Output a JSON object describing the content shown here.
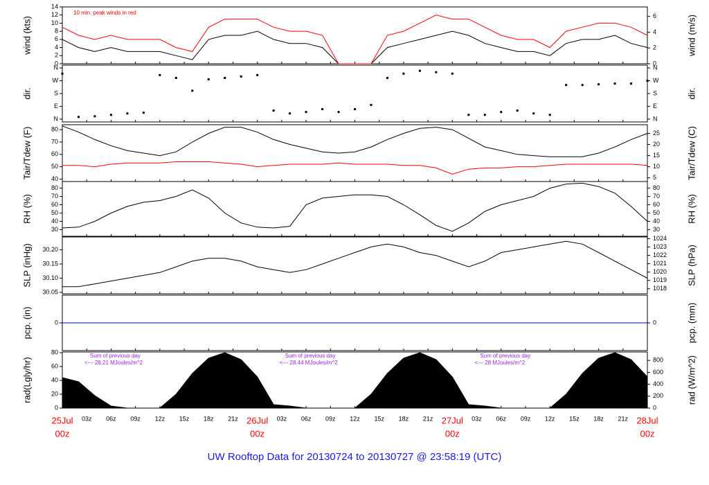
{
  "x_axis": {
    "xlim": [
      0,
      72
    ],
    "x": [
      0,
      2,
      4,
      6,
      8,
      10,
      12,
      14,
      16,
      18,
      20,
      22,
      24,
      26,
      28,
      30,
      32,
      34,
      36,
      38,
      40,
      42,
      44,
      46,
      48,
      50,
      52,
      54,
      56,
      58,
      60,
      62,
      64,
      66,
      68,
      70,
      72
    ],
    "xticks": [
      {
        "value": 0,
        "label": "00z"
      },
      {
        "value": 3,
        "label": "03z"
      },
      {
        "value": 6,
        "label": "06z"
      },
      {
        "value": 9,
        "label": "09z"
      },
      {
        "value": 12,
        "label": "12z"
      },
      {
        "value": 15,
        "label": "15z"
      },
      {
        "value": 18,
        "label": "18z"
      },
      {
        "value": 21,
        "label": "21z"
      },
      {
        "value": 24,
        "label": "00z"
      },
      {
        "value": 27,
        "label": "03z"
      },
      {
        "value": 30,
        "label": "06z"
      },
      {
        "value": 33,
        "label": "09z"
      },
      {
        "value": 36,
        "label": "12z"
      },
      {
        "value": 39,
        "label": "15z"
      },
      {
        "value": 42,
        "label": "18z"
      },
      {
        "value": 45,
        "label": "21z"
      },
      {
        "value": 48,
        "label": "00z"
      },
      {
        "value": 51,
        "label": "03z"
      },
      {
        "value": 54,
        "label": "06z"
      },
      {
        "value": 57,
        "label": "09z"
      },
      {
        "value": 60,
        "label": "12z"
      },
      {
        "value": 63,
        "label": "15z"
      },
      {
        "value": 66,
        "label": "18z"
      },
      {
        "value": 69,
        "label": "21z"
      },
      {
        "value": 72,
        "label": "00z"
      }
    ],
    "day_labels": [
      {
        "value": 0,
        "label": "25Jul"
      },
      {
        "value": 24,
        "label": "26Jul"
      },
      {
        "value": 48,
        "label": "27Jul"
      },
      {
        "value": 72,
        "label": "28Jul"
      }
    ]
  },
  "chart_data": [
    {
      "type": "line",
      "ylabel": "wind (kts)",
      "y2label": "wind (m/s)",
      "annotation": "10 min. peak winds in red",
      "ylim": [
        0,
        14
      ],
      "yticks": [
        0,
        2,
        4,
        6,
        8,
        10,
        12,
        14
      ],
      "y2lim": [
        0,
        7.2
      ],
      "y2ticks": [
        0,
        2,
        4,
        6
      ],
      "series": [
        {
          "color": "#000000",
          "values": [
            6,
            4,
            3,
            4,
            3,
            3,
            3,
            2,
            1,
            6,
            7,
            7,
            8,
            6,
            5,
            5,
            4,
            0,
            0,
            0,
            4,
            5,
            6,
            7,
            8,
            7,
            5,
            4,
            3,
            3,
            2,
            5,
            6,
            6,
            7,
            5,
            4
          ]
        },
        {
          "color": "#ff0000",
          "values": [
            9,
            7,
            6,
            7,
            6,
            6,
            6,
            4,
            3,
            9,
            11,
            11,
            11,
            9,
            8,
            8,
            7,
            0,
            0,
            0,
            7,
            8,
            10,
            12,
            11,
            11,
            9,
            7,
            6,
            6,
            4,
            8,
            9,
            10,
            10,
            9,
            7
          ]
        }
      ]
    },
    {
      "type": "scatter",
      "ylabel": "dir.",
      "y2label": "dir.",
      "ylim": [
        -20,
        380
      ],
      "yticks": [
        {
          "value": 0,
          "label": "N"
        },
        {
          "value": 90,
          "label": "E"
        },
        {
          "value": 180,
          "label": "S"
        },
        {
          "value": 270,
          "label": "W"
        },
        {
          "value": 360,
          "label": "N"
        }
      ],
      "y2lim": [
        -20,
        380
      ],
      "y2ticks": [
        {
          "value": 0,
          "label": "N"
        },
        {
          "value": 90,
          "label": "E"
        },
        {
          "value": 180,
          "label": "S"
        },
        {
          "value": 270,
          "label": "W"
        },
        {
          "value": 360,
          "label": "N"
        }
      ],
      "series": [
        {
          "color": "#000000",
          "values": [
            320,
            15,
            20,
            30,
            40,
            45,
            310,
            290,
            200,
            280,
            290,
            300,
            310,
            60,
            40,
            50,
            70,
            50,
            70,
            100,
            290,
            320,
            340,
            330,
            320,
            30,
            30,
            50,
            60,
            40,
            30,
            240,
            240,
            245,
            250,
            250,
            270
          ]
        }
      ]
    },
    {
      "type": "line",
      "ylabel": "Tair/Tdew (F)",
      "y2label": "Tair/Tdew (C)",
      "ylim": [
        38,
        84
      ],
      "yticks": [
        40,
        50,
        60,
        70,
        80
      ],
      "y2lim": [
        3.33,
        28.9
      ],
      "y2ticks": [
        5,
        10,
        15,
        20,
        25
      ],
      "series": [
        {
          "color": "#000000",
          "values": [
            83,
            78,
            72,
            67,
            63,
            61,
            59,
            62,
            70,
            77,
            82,
            82,
            78,
            72,
            68,
            65,
            62,
            61,
            62,
            66,
            72,
            77,
            81,
            82,
            80,
            73,
            66,
            63,
            60,
            59,
            58,
            58,
            58,
            61,
            66,
            72,
            77
          ]
        },
        {
          "color": "#ff0000",
          "values": [
            51,
            51,
            50,
            52,
            53,
            53,
            53,
            54,
            54,
            54,
            53,
            52,
            50,
            51,
            52,
            52,
            52,
            53,
            52,
            52,
            52,
            51,
            51,
            49,
            44,
            48,
            49,
            49,
            50,
            50,
            51,
            52,
            52,
            52,
            52,
            52,
            51
          ]
        }
      ]
    },
    {
      "type": "line",
      "ylabel": "RH (%)",
      "y2label": "RH (%)",
      "ylim": [
        22,
        88
      ],
      "yticks": [
        30,
        40,
        50,
        60,
        70,
        80
      ],
      "y2lim": [
        22,
        88
      ],
      "y2ticks": [
        30,
        40,
        50,
        60,
        70,
        80
      ],
      "series": [
        {
          "color": "#000000",
          "values": [
            32,
            33,
            40,
            50,
            58,
            63,
            65,
            70,
            78,
            68,
            50,
            38,
            33,
            32,
            34,
            60,
            68,
            70,
            72,
            72,
            70,
            60,
            48,
            35,
            28,
            38,
            52,
            60,
            65,
            70,
            80,
            85,
            86,
            82,
            74,
            58,
            40
          ]
        }
      ]
    },
    {
      "type": "line",
      "ylabel": "SLP (inHg)",
      "y2label": "SLP (hPa)",
      "ylim": [
        30.045,
        30.245
      ],
      "yticks": [
        30.05,
        {
          "value": 30.1,
          "label": "30.10"
        },
        30.15,
        {
          "value": 30.2,
          "label": "30.20"
        }
      ],
      "y2lim": [
        1017.4,
        1024.2
      ],
      "y2ticks": [
        1018,
        1019,
        1020,
        1021,
        1022,
        1023,
        1024
      ],
      "series": [
        {
          "color": "#000000",
          "values": [
            30.07,
            30.07,
            30.08,
            30.09,
            30.1,
            30.11,
            30.12,
            30.14,
            30.16,
            30.17,
            30.17,
            30.16,
            30.14,
            30.13,
            30.12,
            30.13,
            30.15,
            30.17,
            30.19,
            30.21,
            30.22,
            30.21,
            30.19,
            30.18,
            30.16,
            30.14,
            30.16,
            30.19,
            30.2,
            30.21,
            30.22,
            30.23,
            30.22,
            30.19,
            30.16,
            30.13,
            30.1
          ]
        }
      ]
    },
    {
      "type": "line",
      "ylabel": "pcp. (in)",
      "y2label": "pcp. (mm)",
      "ylim": [
        -1,
        1
      ],
      "yticks": [
        0
      ],
      "y2lim": [
        -1,
        1
      ],
      "y2ticks": [
        0
      ],
      "series": [
        {
          "color": "#0000ff",
          "values": [
            0,
            0,
            0,
            0,
            0,
            0,
            0,
            0,
            0,
            0,
            0,
            0,
            0,
            0,
            0,
            0,
            0,
            0,
            0,
            0,
            0,
            0,
            0,
            0,
            0,
            0,
            0,
            0,
            0,
            0,
            0,
            0,
            0,
            0,
            0,
            0,
            0
          ]
        }
      ]
    },
    {
      "type": "area",
      "ylabel": "rad(Lgly/hr)",
      "y2label": "rad (W/m^2)",
      "ylim": [
        0,
        81
      ],
      "yticks": [
        0,
        20,
        40,
        60,
        80
      ],
      "y2lim": [
        0,
        942
      ],
      "y2ticks": [
        0,
        200,
        400,
        600,
        800
      ],
      "daily_totals": [
        {
          "title": "Sum of previous day",
          "text": "<--- 28.21 MJoules/m^2"
        },
        {
          "title": "Sum of previous day",
          "text": "<--- 28.44 MJoules/m^2"
        },
        {
          "title": "Sum of previous day",
          "text": "<--- 28 MJoules/m^2"
        }
      ],
      "series": [
        {
          "color": "#000000",
          "values": [
            44,
            38,
            18,
            3,
            0,
            0,
            0,
            20,
            50,
            72,
            80,
            70,
            45,
            5,
            3,
            0,
            0,
            0,
            0,
            20,
            50,
            72,
            80,
            70,
            45,
            5,
            3,
            0,
            0,
            0,
            0,
            20,
            50,
            72,
            80,
            70,
            45
          ]
        }
      ]
    }
  ],
  "footer": "UW Rooftop Data for 20130724  to  20130727 @ 23:58:19  (UTC)"
}
